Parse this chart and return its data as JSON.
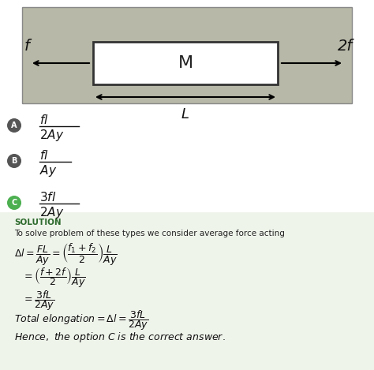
{
  "bg_color": "#ffffff",
  "light_green_bg": "#eff4eb",
  "diagram": {
    "rod_label": "M",
    "left_force": "f",
    "right_force": "2f",
    "length_label": "L",
    "bg_color": "#b8b8a8"
  },
  "options": [
    {
      "label": "A",
      "numerator": "fl",
      "denominator": "2Ay",
      "circle_color": "#555555"
    },
    {
      "label": "B",
      "numerator": "fl",
      "denominator": "Ay",
      "circle_color": "#555555"
    },
    {
      "label": "C",
      "numerator": "3fl",
      "denominator": "2Ay",
      "circle_color": "#4caf50"
    }
  ],
  "solution_header": "SOLUTION",
  "solution_intro": "To solve problem of these types we consider average force acting",
  "solution_header_color": "#2e6b2e",
  "text_color": "#111111"
}
